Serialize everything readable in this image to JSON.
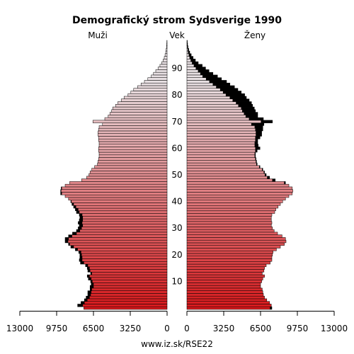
{
  "chart_data": {
    "type": "bar",
    "orientation": "horizontal",
    "title": "Demografický strom Sydsverige 1990",
    "left_label": "Muži",
    "center_label": "Vek",
    "right_label": "Ženy",
    "footer": "www.iz.sk/RSE22",
    "x_ticks_left": [
      "13000",
      "9750",
      "6500",
      "3250",
      "0"
    ],
    "x_ticks_right": [
      "0",
      "3250",
      "6500",
      "9750",
      "13000"
    ],
    "x_max": 13000,
    "age_ticks": [
      "10",
      "20",
      "30",
      "40",
      "50",
      "60",
      "70",
      "80",
      "90"
    ],
    "age_max": 100,
    "colors": {
      "male_young": "#d7191c",
      "female_young": "#d7191c",
      "old": "#e8e0e3",
      "excess": "#000000"
    },
    "males": [
      7350,
      7900,
      7600,
      7300,
      7150,
      7000,
      7000,
      6800,
      6800,
      6700,
      6750,
      6950,
      7050,
      6750,
      7000,
      7050,
      7200,
      7650,
      7750,
      7700,
      7700,
      7800,
      8100,
      8500,
      8700,
      9000,
      9000,
      8700,
      8350,
      8000,
      7850,
      7750,
      7850,
      7750,
      7700,
      7750,
      8000,
      8100,
      8250,
      8400,
      8500,
      8700,
      9000,
      9400,
      9400,
      9350,
      9000,
      8600,
      7550,
      7100,
      6900,
      6800,
      6650,
      6400,
      6150,
      6100,
      6050,
      6000,
      6000,
      6050,
      6050,
      6000,
      6000,
      6050,
      6050,
      6100,
      6100,
      6050,
      6000,
      5700,
      6550,
      5500,
      5200,
      5050,
      4900,
      4800,
      4550,
      4350,
      4050,
      3800,
      3450,
      3200,
      2950,
      2600,
      2300,
      2000,
      1700,
      1400,
      1200,
      1000,
      800,
      630,
      470,
      350,
      250,
      180,
      120,
      80,
      50,
      30,
      20
    ],
    "females": [
      7500,
      7450,
      7300,
      7050,
      6850,
      6750,
      6700,
      6650,
      6500,
      6500,
      6600,
      6700,
      6850,
      6650,
      6800,
      6850,
      7000,
      7350,
      7500,
      7500,
      7550,
      7600,
      7900,
      8250,
      8600,
      8750,
      8700,
      8400,
      8000,
      7700,
      7550,
      7450,
      7500,
      7450,
      7450,
      7500,
      7750,
      7850,
      8050,
      8250,
      8450,
      8700,
      9000,
      9300,
      9350,
      9300,
      9000,
      8700,
      7800,
      7300,
      7000,
      6850,
      6700,
      6450,
      6200,
      6150,
      6100,
      6050,
      6050,
      6200,
      6450,
      6300,
      6250,
      6250,
      6450,
      6600,
      6600,
      6700,
      6700,
      6800,
      7550,
      6750,
      6250,
      6250,
      6050,
      5950,
      5800,
      5700,
      5500,
      5250,
      5100,
      4800,
      4500,
      4200,
      3800,
      3500,
      3050,
      2700,
      2300,
      1950,
      1650,
      1350,
      1000,
      750,
      550,
      380,
      250,
      160,
      100,
      60,
      35
    ]
  }
}
